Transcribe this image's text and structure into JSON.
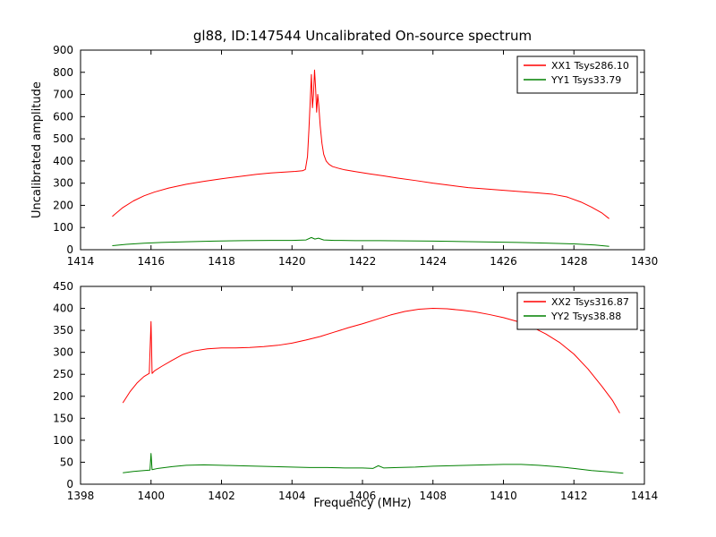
{
  "figure": {
    "title": "gl88, ID:147544 Uncalibrated On-source spectrum",
    "xlabel": "Frequency (MHz)",
    "ylabel": "Uncalibrated amplitude",
    "background": "#ffffff",
    "axis_color": "#000000"
  },
  "chart_data": [
    {
      "type": "line",
      "subplot": "top",
      "title": "gl88, ID:147544 Uncalibrated On-source spectrum",
      "xlabel": "",
      "ylabel": "Uncalibrated amplitude",
      "xlim": [
        1414,
        1430
      ],
      "ylim": [
        0,
        900
      ],
      "xticks": [
        1414,
        1416,
        1418,
        1420,
        1422,
        1424,
        1426,
        1428,
        1430
      ],
      "yticks": [
        0,
        100,
        200,
        300,
        400,
        500,
        600,
        700,
        800,
        900
      ],
      "grid": false,
      "legend_position": "upper right",
      "series": [
        {
          "name": "XX1 Tsys286.10",
          "color": "#ff0000",
          "x": [
            1414.9,
            1415.2,
            1415.5,
            1415.8,
            1416.1,
            1416.5,
            1417.0,
            1417.5,
            1418.0,
            1418.5,
            1419.0,
            1419.4,
            1419.8,
            1420.1,
            1420.3,
            1420.38,
            1420.44,
            1420.48,
            1420.52,
            1420.55,
            1420.58,
            1420.61,
            1420.64,
            1420.67,
            1420.7,
            1420.73,
            1420.76,
            1420.8,
            1420.85,
            1420.9,
            1420.97,
            1421.05,
            1421.15,
            1421.3,
            1421.5,
            1421.8,
            1422.2,
            1422.6,
            1423.0,
            1423.5,
            1424.0,
            1424.5,
            1425.0,
            1425.5,
            1426.0,
            1426.5,
            1427.0,
            1427.4,
            1427.8,
            1428.2,
            1428.5,
            1428.8,
            1429.0
          ],
          "y": [
            150,
            190,
            220,
            243,
            260,
            278,
            295,
            308,
            320,
            330,
            340,
            346,
            350,
            353,
            356,
            362,
            420,
            540,
            680,
            790,
            640,
            700,
            810,
            730,
            620,
            700,
            650,
            560,
            480,
            430,
            400,
            385,
            375,
            368,
            360,
            352,
            342,
            333,
            323,
            312,
            300,
            290,
            280,
            274,
            268,
            262,
            256,
            250,
            238,
            215,
            192,
            165,
            140
          ]
        },
        {
          "name": "YY1 Tsys33.79",
          "color": "#008000",
          "x": [
            1414.9,
            1415.3,
            1415.8,
            1416.3,
            1417.0,
            1417.8,
            1418.6,
            1419.4,
            1420.0,
            1420.4,
            1420.55,
            1420.65,
            1420.75,
            1420.9,
            1421.2,
            1421.8,
            1422.5,
            1423.2,
            1424.0,
            1424.8,
            1425.6,
            1426.4,
            1427.2,
            1428.0,
            1428.6,
            1429.0
          ],
          "y": [
            18,
            24,
            29,
            33,
            36,
            39,
            41,
            42,
            42,
            44,
            55,
            48,
            52,
            44,
            42,
            41,
            41,
            40,
            39,
            37,
            35,
            33,
            30,
            26,
            21,
            15
          ]
        }
      ]
    },
    {
      "type": "line",
      "subplot": "bottom",
      "title": "",
      "xlabel": "Frequency (MHz)",
      "ylabel": "",
      "xlim": [
        1398,
        1414
      ],
      "ylim": [
        0,
        450
      ],
      "xticks": [
        1398,
        1400,
        1402,
        1404,
        1406,
        1408,
        1410,
        1412,
        1414
      ],
      "yticks": [
        0,
        50,
        100,
        150,
        200,
        250,
        300,
        350,
        400,
        450
      ],
      "grid": false,
      "legend_position": "upper right",
      "series": [
        {
          "name": "XX2 Tsys316.87",
          "color": "#ff0000",
          "x": [
            1399.2,
            1399.4,
            1399.6,
            1399.8,
            1399.95,
            1400.0,
            1400.03,
            1400.1,
            1400.3,
            1400.6,
            1400.9,
            1401.2,
            1401.6,
            1402.0,
            1402.4,
            1402.8,
            1403.2,
            1403.6,
            1404.0,
            1404.4,
            1404.8,
            1405.2,
            1405.6,
            1406.0,
            1406.4,
            1406.8,
            1407.2,
            1407.6,
            1408.0,
            1408.4,
            1408.8,
            1409.2,
            1409.6,
            1410.0,
            1410.4,
            1410.8,
            1411.2,
            1411.6,
            1412.0,
            1412.4,
            1412.8,
            1413.1,
            1413.3
          ],
          "y": [
            185,
            210,
            230,
            245,
            252,
            370,
            252,
            258,
            268,
            282,
            295,
            303,
            308,
            310,
            310,
            311,
            313,
            316,
            321,
            328,
            336,
            346,
            356,
            365,
            375,
            385,
            393,
            398,
            400,
            399,
            396,
            392,
            386,
            379,
            370,
            358,
            342,
            322,
            296,
            262,
            222,
            190,
            162
          ]
        },
        {
          "name": "YY2 Tsys38.88",
          "color": "#008000",
          "x": [
            1399.2,
            1399.5,
            1399.8,
            1399.97,
            1400.0,
            1400.03,
            1400.2,
            1400.6,
            1401.0,
            1401.5,
            1402.0,
            1402.5,
            1403.0,
            1403.5,
            1404.0,
            1404.5,
            1405.0,
            1405.5,
            1406.0,
            1406.3,
            1406.45,
            1406.6,
            1407.0,
            1407.5,
            1408.0,
            1408.5,
            1409.0,
            1409.5,
            1410.0,
            1410.5,
            1411.0,
            1411.5,
            1412.0,
            1412.5,
            1413.0,
            1413.4
          ],
          "y": [
            26,
            29,
            31,
            32,
            70,
            33,
            36,
            40,
            43,
            44,
            43,
            42,
            41,
            40,
            39,
            38,
            38,
            37,
            37,
            36,
            42,
            37,
            38,
            39,
            41,
            42,
            43,
            44,
            45,
            45,
            43,
            40,
            36,
            31,
            28,
            25
          ]
        }
      ]
    }
  ]
}
